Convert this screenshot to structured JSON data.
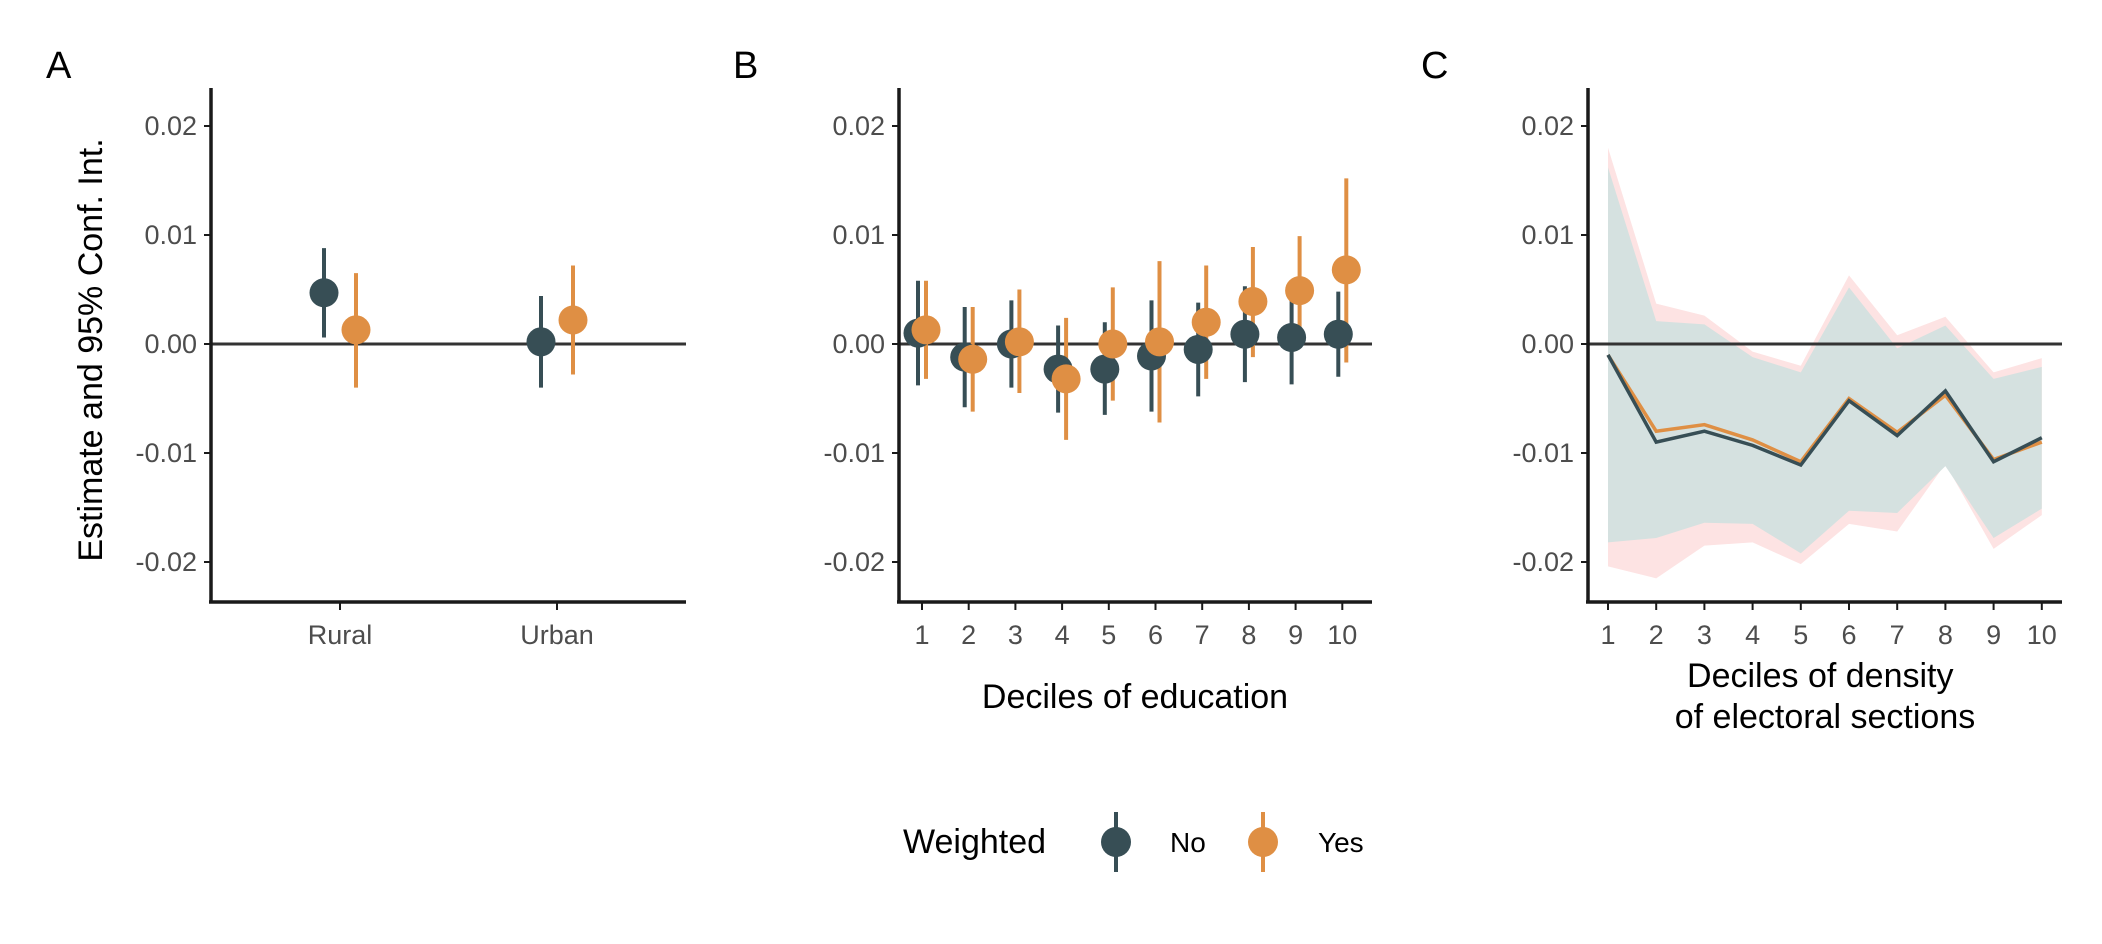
{
  "colors": {
    "no": "#374e55",
    "yes": "#df8f44",
    "ribbon_no": "#d5e1e0",
    "ribbon_yes": "#fde3e3",
    "axis": "#1a1a1a",
    "zero_line": "#333333"
  },
  "legend": {
    "title": "Weighted",
    "items": [
      {
        "key": "no",
        "label": "No"
      },
      {
        "key": "yes",
        "label": "Yes"
      }
    ]
  },
  "chart_data": [
    {
      "tag": "A",
      "type": "scatter",
      "ylabel": "Estimate and 95% Conf. Int.",
      "xlabel": "",
      "categories": [
        "Rural",
        "Urban"
      ],
      "yticks": [
        "0.02",
        "0.01",
        "0.00",
        "-0.01",
        "-0.02"
      ],
      "ylim": [
        -0.0237,
        0.0237
      ],
      "series": [
        {
          "name": "No",
          "values": [
            0.0047,
            0.0002
          ],
          "lower": [
            0.0006,
            -0.004
          ],
          "upper": [
            0.0088,
            0.0044
          ]
        },
        {
          "name": "Yes",
          "values": [
            0.0013,
            0.0022
          ],
          "lower": [
            -0.004,
            -0.0028
          ],
          "upper": [
            0.0065,
            0.0072
          ]
        }
      ]
    },
    {
      "tag": "B",
      "type": "scatter",
      "ylabel": "",
      "xlabel": "Deciles of education",
      "categories": [
        "1",
        "2",
        "3",
        "4",
        "5",
        "6",
        "7",
        "8",
        "9",
        "10"
      ],
      "yticks": [
        "0.02",
        "0.01",
        "0.00",
        "-0.01",
        "-0.02"
      ],
      "ylim": [
        -0.0237,
        0.0237
      ],
      "series": [
        {
          "name": "No",
          "values": [
            0.001,
            -0.0012,
            0.0,
            -0.0023,
            -0.0023,
            -0.0011,
            -0.0005,
            0.0009,
            0.0006,
            0.0009
          ],
          "lower": [
            -0.0038,
            -0.0058,
            -0.004,
            -0.0063,
            -0.0065,
            -0.0062,
            -0.0048,
            -0.0035,
            -0.0037,
            -0.003
          ],
          "upper": [
            0.0058,
            0.0034,
            0.004,
            0.0017,
            0.002,
            0.004,
            0.0038,
            0.0053,
            0.0049,
            0.0048
          ]
        },
        {
          "name": "Yes",
          "values": [
            0.0013,
            -0.0014,
            0.0002,
            -0.0032,
            0.0,
            0.0002,
            0.002,
            0.0039,
            0.0049,
            0.0068
          ],
          "lower": [
            -0.0032,
            -0.0062,
            -0.0045,
            -0.0088,
            -0.0052,
            -0.0072,
            -0.0032,
            -0.0012,
            -0.0002,
            -0.0017
          ],
          "upper": [
            0.0058,
            0.0034,
            0.005,
            0.0024,
            0.0052,
            0.0076,
            0.0072,
            0.0089,
            0.0099,
            0.0152
          ]
        }
      ]
    },
    {
      "tag": "C",
      "type": "area",
      "ylabel": "",
      "xlabel": "Deciles of density\nof electoral sections",
      "categories": [
        "1",
        "2",
        "3",
        "4",
        "5",
        "6",
        "7",
        "8",
        "9",
        "10"
      ],
      "yticks": [
        "0.02",
        "0.01",
        "0.00",
        "-0.01",
        "-0.02"
      ],
      "ylim": [
        -0.0237,
        0.0237
      ],
      "series": [
        {
          "name": "Yes",
          "values": [
            -0.001,
            -0.008,
            -0.0074,
            -0.0088,
            -0.0108,
            -0.005,
            -0.0081,
            -0.0047,
            -0.0106,
            -0.009
          ],
          "lower": [
            -0.0204,
            -0.0215,
            -0.0185,
            -0.0182,
            -0.0202,
            -0.0165,
            -0.0172,
            -0.011,
            -0.0188,
            -0.0157
          ],
          "upper": [
            0.018,
            0.0037,
            0.0026,
            -0.0007,
            -0.002,
            0.0063,
            0.0008,
            0.0025,
            -0.0026,
            -0.0013
          ]
        },
        {
          "name": "No",
          "values": [
            -0.001,
            -0.009,
            -0.008,
            -0.0093,
            -0.0111,
            -0.0052,
            -0.0084,
            -0.0043,
            -0.0108,
            -0.0086
          ],
          "lower": [
            -0.0182,
            -0.0178,
            -0.0164,
            -0.0165,
            -0.0192,
            -0.0153,
            -0.0155,
            -0.0112,
            -0.0178,
            -0.0151
          ],
          "upper": [
            0.0162,
            0.0021,
            0.0018,
            -0.0012,
            -0.0026,
            0.0052,
            -0.0004,
            0.0017,
            -0.0032,
            -0.0021
          ]
        }
      ]
    }
  ]
}
